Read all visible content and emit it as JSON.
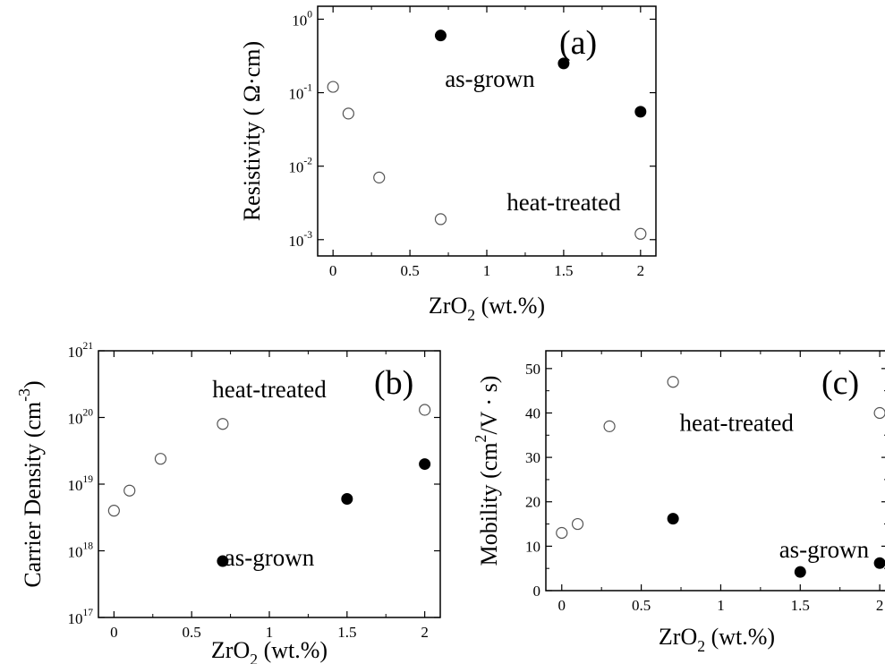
{
  "chart_data": [
    {
      "type": "scatter",
      "panel_label": "(a)",
      "xlabel": "ZrO2 (wt.%)",
      "ylabel": "Resistivity ( Ω·cm)",
      "y_scale": "log",
      "xlim": [
        -0.1,
        2.1
      ],
      "ylim": [
        0.0006,
        1.5
      ],
      "x_ticks": [
        0,
        0.5,
        1,
        1.5,
        2
      ],
      "x_tick_labels": [
        "0",
        "0.5",
        "1",
        "1.5",
        "2"
      ],
      "y_ticks": [
        0.001,
        0.01,
        0.1,
        1
      ],
      "y_tick_labels": [
        [
          "10",
          "-3"
        ],
        [
          "10",
          "-2"
        ],
        [
          "10",
          "-1"
        ],
        [
          "10",
          "0"
        ]
      ],
      "series": [
        {
          "name": "as-grown",
          "marker": "filled",
          "x": [
            0.7,
            1.5,
            2.0
          ],
          "y": [
            0.6,
            0.25,
            0.055
          ]
        },
        {
          "name": "heat-treated",
          "marker": "open",
          "x": [
            0,
            0.1,
            0.3,
            0.7,
            2.0
          ],
          "y": [
            0.12,
            0.052,
            0.007,
            0.0019,
            0.0012
          ]
        }
      ],
      "annotations": [
        {
          "text": "as-grown",
          "x": 1.02,
          "y": 0.12
        },
        {
          "text": "heat-treated",
          "x": 1.5,
          "y": 0.0025
        }
      ]
    },
    {
      "type": "scatter",
      "panel_label": "(b)",
      "xlabel": "ZrO2 (wt.%)",
      "ylabel": "Carrier Density (cm-3)",
      "y_scale": "log",
      "xlim": [
        -0.1,
        2.1
      ],
      "ylim": [
        1e+17,
        1e+21
      ],
      "x_ticks": [
        0,
        0.5,
        1,
        1.5,
        2
      ],
      "x_tick_labels": [
        "0",
        "0.5",
        "1",
        "1.5",
        "2"
      ],
      "y_ticks": [
        1e+17,
        1e+18,
        1e+19,
        1e+20,
        1e+21
      ],
      "y_tick_labels": [
        [
          "10",
          "17"
        ],
        [
          "10",
          "18"
        ],
        [
          "10",
          "19"
        ],
        [
          "10",
          "20"
        ],
        [
          "10",
          "21"
        ]
      ],
      "series": [
        {
          "name": "as-grown",
          "marker": "filled",
          "x": [
            0.7,
            1.5,
            2.0
          ],
          "y": [
            7e+17,
            6e+18,
            2e+19
          ]
        },
        {
          "name": "heat-treated",
          "marker": "open",
          "x": [
            0,
            0.1,
            0.3,
            0.7,
            2.0
          ],
          "y": [
            4e+18,
            8e+18,
            2.4e+19,
            8e+19,
            1.3e+20
          ]
        }
      ],
      "annotations": [
        {
          "text": "as-grown",
          "x": 1.0,
          "y": 6e+17
        },
        {
          "text": "heat-treated",
          "x": 1.0,
          "y": 2e+20
        }
      ]
    },
    {
      "type": "scatter",
      "panel_label": "(c)",
      "xlabel": "ZrO2 (wt.%)",
      "ylabel": "Mobility (cm2/V · s)",
      "y_scale": "linear",
      "xlim": [
        -0.1,
        2.05
      ],
      "ylim": [
        0,
        54
      ],
      "x_ticks": [
        0,
        0.5,
        1,
        1.5,
        2
      ],
      "x_tick_labels": [
        "0",
        "0.5",
        "1",
        "1.5",
        "2"
      ],
      "y_ticks": [
        0,
        10,
        20,
        30,
        40,
        50
      ],
      "y_tick_labels": [
        [
          "0",
          ""
        ],
        [
          "10",
          ""
        ],
        [
          "20",
          ""
        ],
        [
          "30",
          ""
        ],
        [
          "40",
          ""
        ],
        [
          "50",
          ""
        ]
      ],
      "series": [
        {
          "name": "as-grown",
          "marker": "filled",
          "x": [
            0.7,
            1.5,
            2.0
          ],
          "y": [
            16.2,
            4.2,
            6.2
          ]
        },
        {
          "name": "heat-treated",
          "marker": "open",
          "x": [
            0,
            0.1,
            0.3,
            0.7,
            2.0
          ],
          "y": [
            13,
            15,
            37,
            47,
            40
          ]
        }
      ],
      "annotations": [
        {
          "text": "as-grown",
          "x": 1.65,
          "y": 7.5
        },
        {
          "text": "heat-treated",
          "x": 1.1,
          "y": 36
        }
      ]
    }
  ]
}
